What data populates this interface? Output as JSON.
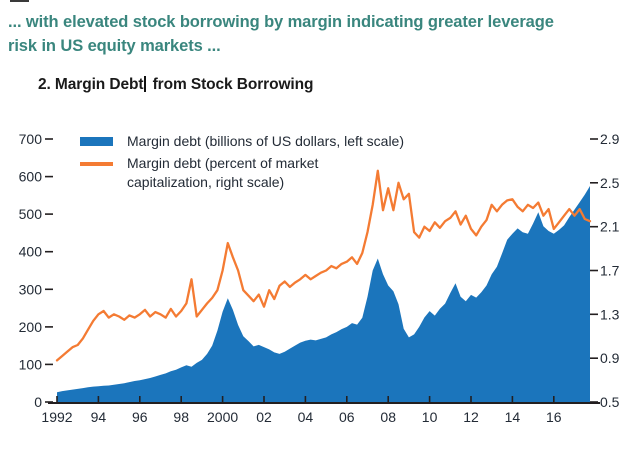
{
  "page": {
    "kicker_line1": "... with elevated stock borrowing by margin indicating greater leverage",
    "kicker_line2": "risk in US equity markets ...",
    "figure_title_before_cursor": "2. Margin Debt",
    "figure_title_after_cursor": " from Stock Borrowing"
  },
  "colors": {
    "kicker_text": "#3A867E",
    "title_text": "#1A1A1A",
    "axis_text": "#232B36",
    "axis_line": "#231F20",
    "margin_debt_fill": "#1B75BC",
    "percent_line": "#F47B33"
  },
  "chart_data": {
    "type": "area",
    "title": "2. Margin Debt from Stock Borrowing",
    "grid": false,
    "legend_position": "top-left-inside",
    "x": [
      1992,
      1992.25,
      1992.5,
      1992.75,
      1993,
      1993.25,
      1993.5,
      1993.75,
      1994,
      1994.25,
      1994.5,
      1994.75,
      1995,
      1995.25,
      1995.5,
      1995.75,
      1996,
      1996.25,
      1996.5,
      1996.75,
      1997,
      1997.25,
      1997.5,
      1997.75,
      1998,
      1998.25,
      1998.5,
      1998.75,
      1999,
      1999.25,
      1999.5,
      1999.75,
      2000,
      2000.25,
      2000.5,
      2000.75,
      2001,
      2001.25,
      2001.5,
      2001.75,
      2002,
      2002.25,
      2002.5,
      2002.75,
      2003,
      2003.25,
      2003.5,
      2003.75,
      2004,
      2004.25,
      2004.5,
      2004.75,
      2005,
      2005.25,
      2005.5,
      2005.75,
      2006,
      2006.25,
      2006.5,
      2006.75,
      2007,
      2007.25,
      2007.5,
      2007.75,
      2008,
      2008.25,
      2008.5,
      2008.75,
      2009,
      2009.25,
      2009.5,
      2009.75,
      2010,
      2010.25,
      2010.5,
      2010.75,
      2011,
      2011.25,
      2011.5,
      2011.75,
      2012,
      2012.25,
      2012.5,
      2012.75,
      2013,
      2013.25,
      2013.5,
      2013.75,
      2014,
      2014.25,
      2014.5,
      2014.75,
      2015,
      2015.25,
      2015.5,
      2015.75,
      2016,
      2016.25,
      2016.5,
      2016.75,
      2017,
      2017.25,
      2017.5,
      2017.75
    ],
    "series": [
      {
        "name": "Margin debt (billions of US dollars, left scale)",
        "type": "area",
        "axis": "left",
        "color": "#1B75BC",
        "values": [
          26,
          29,
          31,
          33,
          35,
          37,
          39,
          41,
          42,
          43,
          44,
          46,
          48,
          50,
          53,
          56,
          58,
          61,
          64,
          68,
          72,
          76,
          82,
          86,
          92,
          98,
          94,
          104,
          112,
          128,
          150,
          190,
          240,
          276,
          245,
          205,
          175,
          162,
          148,
          152,
          146,
          140,
          132,
          128,
          134,
          142,
          150,
          158,
          163,
          166,
          164,
          168,
          172,
          180,
          186,
          194,
          200,
          210,
          206,
          224,
          280,
          350,
          382,
          340,
          310,
          295,
          260,
          195,
          172,
          180,
          200,
          225,
          242,
          230,
          248,
          262,
          290,
          316,
          280,
          268,
          285,
          278,
          292,
          310,
          340,
          360,
          395,
          432,
          448,
          462,
          452,
          448,
          475,
          505,
          468,
          455,
          448,
          458,
          470,
          492,
          512,
          532,
          552,
          575
        ]
      },
      {
        "name": "Margin debt (percent of market capitalization, right scale)",
        "type": "line",
        "axis": "right",
        "color": "#F47B33",
        "values": [
          0.88,
          0.92,
          0.96,
          1.0,
          1.02,
          1.08,
          1.16,
          1.24,
          1.3,
          1.33,
          1.27,
          1.3,
          1.28,
          1.25,
          1.29,
          1.27,
          1.3,
          1.34,
          1.28,
          1.32,
          1.3,
          1.27,
          1.35,
          1.28,
          1.33,
          1.4,
          1.62,
          1.28,
          1.34,
          1.4,
          1.45,
          1.52,
          1.7,
          1.95,
          1.82,
          1.7,
          1.52,
          1.47,
          1.42,
          1.48,
          1.37,
          1.52,
          1.44,
          1.56,
          1.6,
          1.55,
          1.59,
          1.62,
          1.66,
          1.62,
          1.65,
          1.68,
          1.7,
          1.74,
          1.72,
          1.76,
          1.78,
          1.82,
          1.76,
          1.86,
          2.05,
          2.3,
          2.61,
          2.25,
          2.45,
          2.25,
          2.5,
          2.35,
          2.4,
          2.05,
          2.0,
          2.1,
          2.06,
          2.14,
          2.09,
          2.15,
          2.18,
          2.24,
          2.12,
          2.2,
          2.08,
          2.02,
          2.1,
          2.16,
          2.3,
          2.24,
          2.3,
          2.34,
          2.35,
          2.28,
          2.24,
          2.3,
          2.27,
          2.32,
          2.2,
          2.26,
          2.08,
          2.14,
          2.2,
          2.26,
          2.2,
          2.26,
          2.17,
          2.15
        ]
      }
    ],
    "x_axis": {
      "range": [
        1992,
        2017.75
      ],
      "tick_years": [
        1992,
        1994,
        1996,
        1998,
        2000,
        2002,
        2004,
        2006,
        2008,
        2010,
        2012,
        2014,
        2016
      ],
      "tick_labels": [
        "1992",
        "94",
        "96",
        "98",
        "2000",
        "02",
        "04",
        "06",
        "08",
        "10",
        "12",
        "14",
        "16"
      ]
    },
    "left_axis": {
      "range": [
        0,
        700
      ],
      "ticks": [
        0,
        100,
        200,
        300,
        400,
        500,
        600,
        700
      ]
    },
    "right_axis": {
      "range": [
        0.5,
        2.9
      ],
      "ticks": [
        "0.5",
        "0.9",
        "1.3",
        "1.7",
        "2.1",
        "2.5",
        "2.9"
      ]
    },
    "legend": [
      {
        "label": "Margin debt (billions of US dollars, left scale)",
        "swatch": "area"
      },
      {
        "label": "Margin debt (percent of market capitalization, right scale)",
        "swatch": "line"
      }
    ]
  }
}
